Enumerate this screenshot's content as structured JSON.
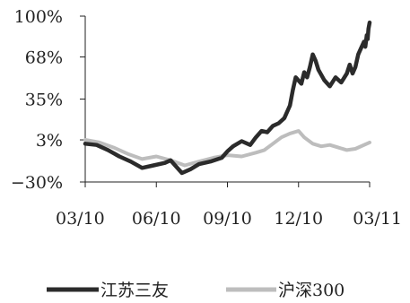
{
  "chart_data": {
    "type": "line",
    "title": "",
    "xlabel": "",
    "ylabel": "",
    "x_ticks": [
      "03/10",
      "06/10",
      "09/10",
      "12/10",
      "03/11"
    ],
    "y_ticks": [
      "100%",
      "68%",
      "35%",
      "3%",
      "-30%"
    ],
    "ylim": [
      -30,
      100
    ],
    "grid": false,
    "legend_position": "bottom",
    "series": [
      {
        "name": "江苏三友",
        "color": "#2b2b2b",
        "points": [
          [
            0.0,
            0
          ],
          [
            0.04,
            -1
          ],
          [
            0.08,
            -5
          ],
          [
            0.12,
            -10
          ],
          [
            0.16,
            -14
          ],
          [
            0.2,
            -19
          ],
          [
            0.24,
            -17
          ],
          [
            0.28,
            -15
          ],
          [
            0.3,
            -13
          ],
          [
            0.32,
            -18
          ],
          [
            0.34,
            -23
          ],
          [
            0.37,
            -20
          ],
          [
            0.4,
            -16
          ],
          [
            0.44,
            -14
          ],
          [
            0.48,
            -11
          ],
          [
            0.5,
            -6
          ],
          [
            0.52,
            -2
          ],
          [
            0.55,
            2
          ],
          [
            0.58,
            -1
          ],
          [
            0.6,
            5
          ],
          [
            0.62,
            10
          ],
          [
            0.64,
            9
          ],
          [
            0.66,
            14
          ],
          [
            0.68,
            16
          ],
          [
            0.7,
            20
          ],
          [
            0.72,
            30
          ],
          [
            0.73,
            42
          ],
          [
            0.74,
            52
          ],
          [
            0.76,
            47
          ],
          [
            0.77,
            56
          ],
          [
            0.78,
            52
          ],
          [
            0.79,
            60
          ],
          [
            0.8,
            70
          ],
          [
            0.81,
            65
          ],
          [
            0.82,
            58
          ],
          [
            0.84,
            50
          ],
          [
            0.86,
            45
          ],
          [
            0.88,
            52
          ],
          [
            0.9,
            48
          ],
          [
            0.92,
            55
          ],
          [
            0.93,
            62
          ],
          [
            0.94,
            55
          ],
          [
            0.95,
            60
          ],
          [
            0.96,
            70
          ],
          [
            0.97,
            75
          ],
          [
            0.98,
            80
          ],
          [
            0.985,
            76
          ],
          [
            0.99,
            85
          ],
          [
            0.993,
            82
          ],
          [
            0.996,
            90
          ],
          [
            1.0,
            95
          ]
        ]
      },
      {
        "name": "沪深300",
        "color": "#bdbdbd",
        "points": [
          [
            0.0,
            3
          ],
          [
            0.05,
            1
          ],
          [
            0.1,
            -3
          ],
          [
            0.15,
            -8
          ],
          [
            0.2,
            -12
          ],
          [
            0.25,
            -10
          ],
          [
            0.3,
            -13
          ],
          [
            0.35,
            -17
          ],
          [
            0.4,
            -14
          ],
          [
            0.45,
            -11
          ],
          [
            0.5,
            -9
          ],
          [
            0.55,
            -10
          ],
          [
            0.6,
            -7
          ],
          [
            0.63,
            -5
          ],
          [
            0.66,
            0
          ],
          [
            0.69,
            5
          ],
          [
            0.72,
            8
          ],
          [
            0.75,
            10
          ],
          [
            0.77,
            5
          ],
          [
            0.8,
            0
          ],
          [
            0.83,
            -2
          ],
          [
            0.86,
            -1
          ],
          [
            0.89,
            -3
          ],
          [
            0.92,
            -5
          ],
          [
            0.95,
            -4
          ],
          [
            1.0,
            1
          ]
        ]
      }
    ]
  }
}
